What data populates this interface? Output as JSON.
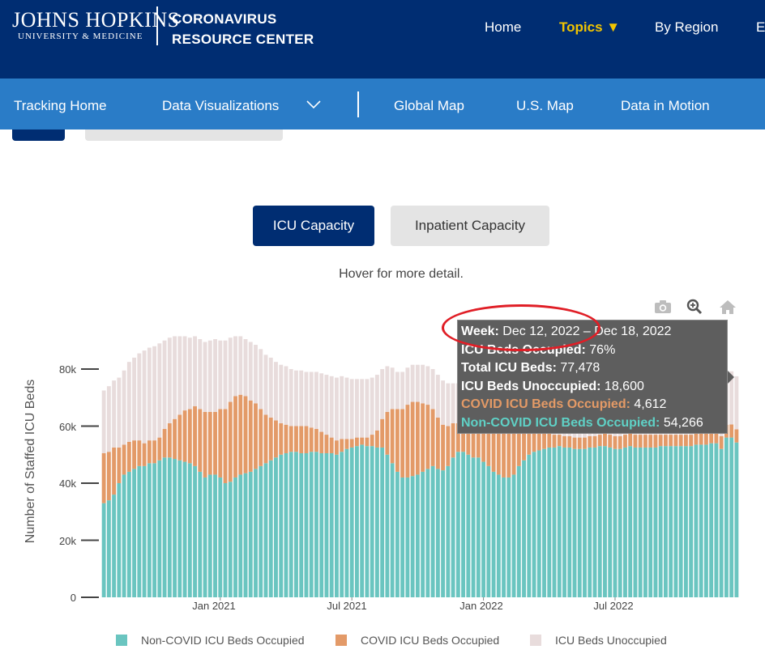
{
  "header": {
    "logo_main": "JOHNS HOPKINS",
    "logo_sub": "UNIVERSITY & MEDICINE",
    "site_title_line1": "CORONAVIRUS",
    "site_title_line2": "RESOURCE CENTER",
    "nav": [
      {
        "label": "Home"
      },
      {
        "label": "Topics ▼"
      },
      {
        "label": "By Region"
      },
      {
        "label": "E"
      }
    ]
  },
  "subnav": {
    "items": [
      {
        "label": "Tracking Home"
      },
      {
        "label": "Data Visualizations"
      },
      {
        "label": "Global Map"
      },
      {
        "label": "U.S. Map"
      },
      {
        "label": "Data in Motion"
      }
    ]
  },
  "toggle": {
    "icu_label": "ICU Capacity",
    "inpatient_label": "Inpatient Capacity"
  },
  "hint": "Hover for more detail.",
  "tooltip": {
    "week_label": "Week:",
    "week_value": "Dec 12, 2022 – Dec 18, 2022",
    "occupied_label": "ICU Beds Occupied:",
    "occupied_value": "76%",
    "total_label": "Total ICU Beds:",
    "total_value": "77,478",
    "unoccupied_label": "ICU Beds Unoccupied:",
    "unoccupied_value": "18,600",
    "covid_label": "COVID ICU Beds Occupied:",
    "covid_value": "4,612",
    "noncovid_label": "Non-COVID ICU Beds Occupied:",
    "noncovid_value": "54,266"
  },
  "modebar": {
    "icons": [
      "camera-icon",
      "zoom-icon",
      "home-icon"
    ]
  },
  "colors": {
    "noncovid": "#6ac5c0",
    "covid": "#e39a68",
    "unoccupied": "#e8dcdc",
    "nav_dark": "#002d72",
    "nav_blue": "#2a7cc7",
    "accent_yellow": "#f1c400",
    "annotation_red": "#e01e26"
  },
  "chart_data": {
    "type": "bar",
    "stacked": true,
    "ylabel": "Number of Staffed ICU Beds",
    "xlabel": "",
    "ylim": [
      0,
      91000
    ],
    "yticks": [
      "0",
      "20k",
      "40k",
      "60k",
      "80k"
    ],
    "ytick_values": [
      0,
      20000,
      40000,
      60000,
      80000
    ],
    "xticks": [
      {
        "label": "Jan 2021",
        "week_index": 23
      },
      {
        "label": "Jul 2021",
        "week_index": 49
      },
      {
        "label": "Jan 2022",
        "week_index": 75
      },
      {
        "label": "Jul 2022",
        "week_index": 101
      }
    ],
    "grid": false,
    "legend_position": "bottom",
    "legend": [
      "Non-COVID ICU Beds Occupied",
      "COVID ICU Beds Occupied",
      "ICU Beds Unoccupied"
    ],
    "series": [
      {
        "name": "Non-COVID ICU Beds Occupied",
        "values": [
          33000,
          34000,
          36000,
          40000,
          43000,
          44000,
          45000,
          46000,
          46000,
          47000,
          47000,
          48000,
          49000,
          49000,
          48500,
          48000,
          47500,
          47000,
          46000,
          44000,
          42000,
          43000,
          43000,
          42000,
          40000,
          40500,
          42000,
          43000,
          43500,
          44000,
          45000,
          46000,
          47000,
          48000,
          49000,
          50000,
          50500,
          51000,
          51000,
          50500,
          50500,
          51000,
          51000,
          50500,
          50500,
          50500,
          50000,
          51000,
          52000,
          52500,
          53000,
          53500,
          53000,
          53000,
          52500,
          52500,
          50000,
          47000,
          44000,
          42000,
          42000,
          42500,
          43000,
          44000,
          45000,
          46000,
          45000,
          44500,
          46000,
          49000,
          51000,
          51000,
          50000,
          49000,
          49000,
          47500,
          46000,
          44000,
          43000,
          42000,
          42000,
          43000,
          46000,
          48000,
          50000,
          51000,
          51500,
          52000,
          52500,
          52500,
          53000,
          52500,
          52500,
          52000,
          52000,
          52000,
          52500,
          52500,
          53000,
          53000,
          52500,
          52000,
          52000,
          52500,
          53000,
          52500,
          52500,
          52500,
          52500,
          52500,
          53000,
          53000,
          53000,
          53000,
          53000,
          53000,
          53000,
          53500,
          53500,
          53500,
          54000,
          54000,
          52000,
          56000,
          56000,
          54266
        ]
      },
      {
        "name": "COVID ICU Beds Occupied",
        "values": [
          17500,
          17000,
          16500,
          12500,
          10500,
          10500,
          10000,
          9000,
          8000,
          8000,
          8000,
          8000,
          10000,
          12000,
          14000,
          16000,
          18000,
          19000,
          21000,
          22000,
          23000,
          22000,
          22000,
          24000,
          26000,
          28000,
          28500,
          28000,
          27000,
          25000,
          23000,
          20000,
          17000,
          15000,
          13000,
          11000,
          10000,
          9000,
          9000,
          9500,
          9500,
          8500,
          8000,
          7500,
          6500,
          5500,
          5000,
          4500,
          3500,
          3000,
          3000,
          2500,
          3000,
          4000,
          6000,
          10000,
          15000,
          19000,
          22000,
          24000,
          25500,
          26000,
          25500,
          24000,
          22500,
          20000,
          18000,
          16000,
          14000,
          12000,
          10000,
          10000,
          11000,
          12000,
          14000,
          16000,
          18000,
          20000,
          20000,
          20000,
          19500,
          18000,
          14000,
          11000,
          8500,
          7000,
          6000,
          5500,
          5000,
          4500,
          4000,
          4000,
          4000,
          4000,
          4000,
          4000,
          4000,
          4000,
          4000,
          4500,
          4500,
          4500,
          4500,
          4500,
          4500,
          4500,
          4500,
          4500,
          4500,
          4500,
          4000,
          4000,
          4000,
          4000,
          4000,
          4000,
          4000,
          4000,
          4000,
          4000,
          4000,
          4000,
          4500,
          4500,
          4612,
          4612
        ]
      },
      {
        "name": "ICU Beds Unoccupied",
        "values": [
          22000,
          23000,
          23500,
          24500,
          26000,
          28000,
          29000,
          30500,
          32500,
          32500,
          33000,
          33000,
          31000,
          30000,
          29000,
          27500,
          26000,
          25000,
          24500,
          24500,
          24500,
          25000,
          25500,
          24000,
          24000,
          22500,
          21000,
          20500,
          20000,
          20500,
          20500,
          21000,
          21000,
          21000,
          20500,
          20500,
          20500,
          20000,
          19500,
          19500,
          19000,
          19500,
          20000,
          20500,
          21000,
          21500,
          22000,
          22000,
          21500,
          21000,
          20500,
          20500,
          20500,
          20000,
          19500,
          17500,
          16000,
          14500,
          13000,
          13000,
          13000,
          13000,
          13000,
          13500,
          13500,
          14000,
          15000,
          15500,
          15000,
          14000,
          14000,
          14500,
          14500,
          14500,
          13500,
          13000,
          12500,
          13000,
          13500,
          14000,
          14500,
          15000,
          16000,
          16500,
          17000,
          17500,
          18000,
          18000,
          18000,
          18000,
          18000,
          18000,
          18000,
          18000,
          18000,
          18000,
          18000,
          18000,
          18000,
          18000,
          18000,
          18000,
          18000,
          18000,
          18000,
          18000,
          18000,
          18000,
          18000,
          18000,
          18000,
          18500,
          18500,
          18500,
          18500,
          18500,
          18500,
          18500,
          18500,
          18500,
          18500,
          18600,
          18600,
          17500,
          18600,
          18600
        ]
      }
    ]
  }
}
